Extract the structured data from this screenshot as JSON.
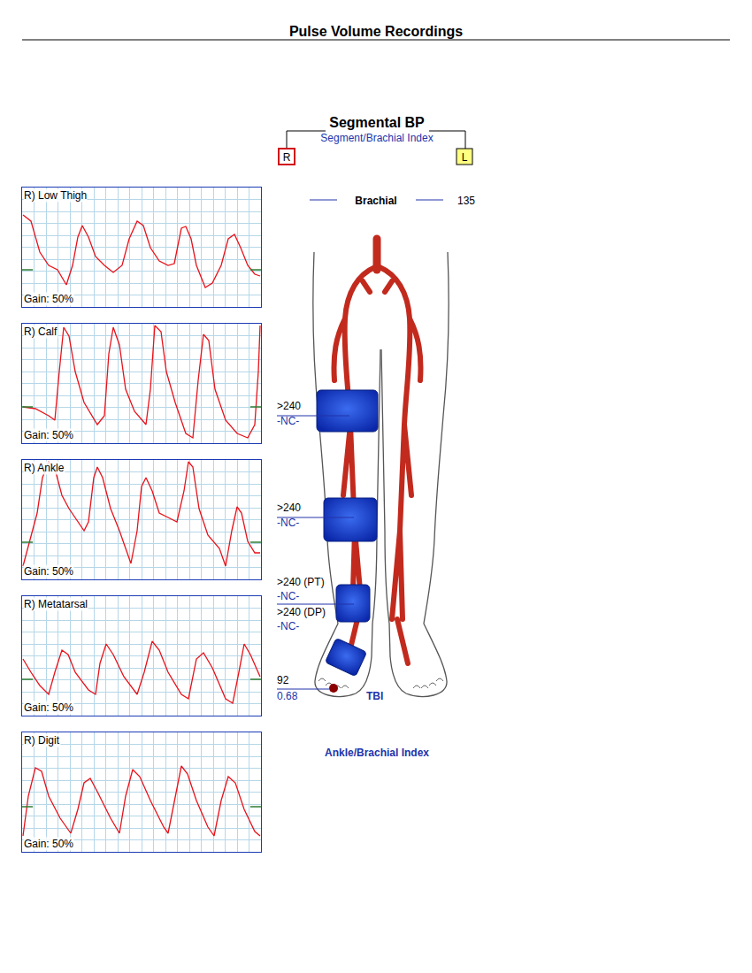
{
  "header": {
    "title": "Pulse Volume Recordings"
  },
  "segmental_bp": {
    "title": "Segmental BP",
    "subtitle": "Segment/Brachial Index",
    "sides": [
      "R",
      "L"
    ],
    "brachial": {
      "label": "Brachial",
      "value": 135
    },
    "segments": [
      {
        "pressure": ">240",
        "index": "-NC-"
      },
      {
        "pressure": ">240",
        "index": "-NC-"
      },
      {
        "pressure": ">240 (PT)",
        "index": "-NC-"
      },
      {
        "pressure": ">240 (DP)",
        "index": "-NC-"
      },
      {
        "pressure": "92",
        "index": "0.68"
      }
    ],
    "toe_label": "TBI",
    "footer": "Ankle/Brachial Index"
  },
  "chart_data": [
    {
      "type": "line",
      "title": "R) Low Thigh",
      "annotations": [
        "Gain: 50%"
      ],
      "color": "#e8121b",
      "x": [
        1,
        10,
        20,
        30,
        40,
        50,
        57,
        63,
        68,
        75,
        83,
        93,
        103,
        113,
        121,
        130,
        137,
        145,
        155,
        165,
        172,
        180,
        185,
        191,
        197,
        207,
        215,
        225,
        233,
        240,
        247,
        255,
        263,
        269
      ],
      "values": [
        104,
        97,
        62,
        47,
        42,
        25,
        47,
        79,
        92,
        79,
        57,
        47,
        39,
        47,
        77,
        97,
        92,
        67,
        52,
        47,
        49,
        89,
        91,
        77,
        47,
        22,
        27,
        47,
        77,
        82,
        67,
        47,
        37,
        35
      ],
      "baseline": 42,
      "xlim": [
        0,
        270
      ],
      "ylim": [
        0,
        135
      ],
      "xticks": [
        0,
        13.5,
        27,
        40.5,
        54,
        67.5,
        81,
        94.5,
        108,
        121.5,
        135,
        148.5,
        162,
        175.5,
        189,
        202.5,
        216,
        229.5,
        243,
        256.5,
        270
      ],
      "yticks": [
        0,
        13.5,
        27,
        40.5,
        54,
        67.5,
        81,
        94.5,
        108,
        121.5,
        135
      ],
      "grid": true,
      "tick_labels": false
    },
    {
      "type": "line",
      "title": "R) Calf",
      "annotations": [
        "Gain: 50%"
      ],
      "color": "#e8121b",
      "x": [
        1,
        15,
        30,
        37,
        42,
        47,
        53,
        60,
        70,
        85,
        93,
        98,
        103,
        110,
        117,
        127,
        140,
        145,
        150,
        157,
        163,
        173,
        185,
        193,
        199,
        205,
        211,
        218,
        230,
        243,
        255,
        263,
        267,
        269
      ],
      "values": [
        41,
        39,
        31,
        26,
        81,
        131,
        121,
        81,
        46,
        21,
        31,
        101,
        131,
        111,
        61,
        36,
        21,
        61,
        133,
        126,
        81,
        46,
        11,
        6,
        71,
        123,
        116,
        61,
        26,
        11,
        6,
        21,
        81,
        133
      ],
      "baseline": 41,
      "xlim": [
        0,
        270
      ],
      "ylim": [
        0,
        135
      ],
      "xticks": [
        0,
        13.5,
        27,
        40.5,
        54,
        67.5,
        81,
        94.5,
        108,
        121.5,
        135,
        148.5,
        162,
        175.5,
        189,
        202.5,
        216,
        229.5,
        243,
        256.5,
        270
      ],
      "yticks": [
        0,
        13.5,
        27,
        40.5,
        54,
        67.5,
        81,
        94.5,
        108,
        121.5,
        135
      ],
      "grid": true,
      "tick_labels": false
    },
    {
      "type": "line",
      "title": "R) Ankle",
      "annotations": [
        "Gain: 50%"
      ],
      "color": "#e8121b",
      "x": [
        1,
        10,
        17,
        23,
        30,
        37,
        45,
        53,
        63,
        70,
        75,
        81,
        85,
        91,
        100,
        110,
        123,
        130,
        135,
        140,
        147,
        155,
        165,
        175,
        183,
        188,
        193,
        200,
        210,
        223,
        230,
        237,
        243,
        248,
        255,
        263,
        269
      ],
      "values": [
        15,
        50,
        75,
        115,
        133,
        125,
        95,
        80,
        65,
        55,
        65,
        115,
        127,
        115,
        80,
        55,
        18,
        55,
        105,
        115,
        100,
        75,
        70,
        65,
        100,
        133,
        127,
        80,
        50,
        35,
        15,
        55,
        82,
        75,
        43,
        30,
        30
      ],
      "baseline": 42,
      "xlim": [
        0,
        270
      ],
      "ylim": [
        0,
        135
      ],
      "xticks": [
        0,
        13.5,
        27,
        40.5,
        54,
        67.5,
        81,
        94.5,
        108,
        121.5,
        135,
        148.5,
        162,
        175.5,
        189,
        202.5,
        216,
        229.5,
        243,
        256.5,
        270
      ],
      "yticks": [
        0,
        13.5,
        27,
        40.5,
        54,
        67.5,
        81,
        94.5,
        108,
        121.5,
        135
      ],
      "grid": true,
      "tick_labels": false
    },
    {
      "type": "line",
      "title": "R) Metatarsal",
      "annotations": [
        "Gain: 50%"
      ],
      "color": "#e8121b",
      "x": [
        1,
        10,
        20,
        30,
        37,
        45,
        52,
        60,
        75,
        83,
        88,
        95,
        103,
        115,
        130,
        138,
        147,
        155,
        165,
        180,
        188,
        197,
        205,
        215,
        230,
        238,
        245,
        251,
        258,
        269
      ],
      "values": [
        64,
        49,
        34,
        24,
        49,
        74,
        69,
        49,
        29,
        24,
        59,
        81,
        69,
        44,
        24,
        49,
        84,
        74,
        49,
        24,
        19,
        64,
        71,
        54,
        19,
        14,
        49,
        81,
        69,
        44
      ],
      "baseline": 41,
      "xlim": [
        0,
        270
      ],
      "ylim": [
        0,
        135
      ],
      "xticks": [
        0,
        13.5,
        27,
        40.5,
        54,
        67.5,
        81,
        94.5,
        108,
        121.5,
        135,
        148.5,
        162,
        175.5,
        189,
        202.5,
        216,
        229.5,
        243,
        256.5,
        270
      ],
      "yticks": [
        0,
        13.5,
        27,
        40.5,
        54,
        67.5,
        81,
        94.5,
        108,
        121.5,
        135
      ],
      "grid": true,
      "tick_labels": false
    },
    {
      "type": "line",
      "title": "R) Digit",
      "annotations": [
        "Gain: 50%"
      ],
      "color": "#e8121b",
      "x": [
        1,
        7,
        15,
        22,
        30,
        43,
        55,
        63,
        70,
        77,
        85,
        100,
        110,
        117,
        125,
        133,
        145,
        160,
        165,
        173,
        180,
        187,
        197,
        210,
        217,
        225,
        233,
        241,
        251,
        263,
        269
      ],
      "values": [
        18,
        63,
        95,
        91,
        63,
        38,
        21,
        48,
        78,
        83,
        68,
        38,
        21,
        63,
        93,
        85,
        58,
        28,
        21,
        63,
        97,
        88,
        58,
        28,
        18,
        58,
        85,
        78,
        48,
        23,
        18
      ],
      "baseline": 51,
      "xlim": [
        0,
        270
      ],
      "ylim": [
        0,
        135
      ],
      "xticks": [
        0,
        13.5,
        27,
        40.5,
        54,
        67.5,
        81,
        94.5,
        108,
        121.5,
        135,
        148.5,
        162,
        175.5,
        189,
        202.5,
        216,
        229.5,
        243,
        256.5,
        270
      ],
      "yticks": [
        0,
        13.5,
        27,
        40.5,
        54,
        67.5,
        81,
        94.5,
        108,
        121.5,
        135
      ],
      "grid": true,
      "tick_labels": false
    }
  ]
}
